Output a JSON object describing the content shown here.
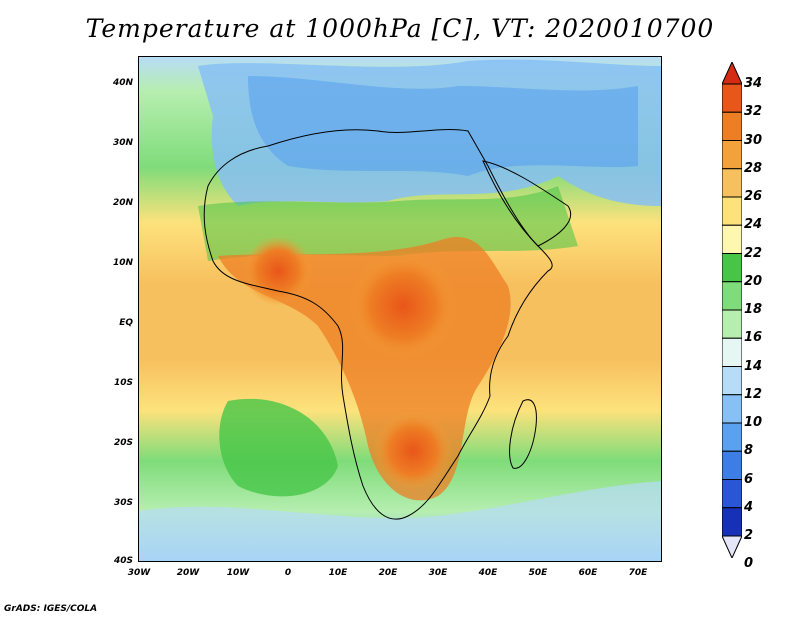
{
  "title": "Temperature at 1000hPa [C], VT: 2020010700",
  "credit": "GrADS: IGES/COLA",
  "map": {
    "lat_labels": [
      "40N",
      "30N",
      "20N",
      "10N",
      "EQ",
      "10S",
      "20S",
      "30S",
      "40S"
    ],
    "lon_labels": [
      "30W",
      "20W",
      "10W",
      "0",
      "10E",
      "20E",
      "30E",
      "40E",
      "50E",
      "60E",
      "70E"
    ],
    "lat_range": [
      -40,
      45
    ],
    "lon_range": [
      -30,
      75
    ]
  },
  "colorbar": {
    "levels": [
      "0",
      "2",
      "4",
      "6",
      "8",
      "10",
      "12",
      "14",
      "16",
      "18",
      "20",
      "22",
      "24",
      "26",
      "28",
      "30",
      "32",
      "34"
    ],
    "colors": [
      "#0c1f6e",
      "#1631b8",
      "#2a55d6",
      "#3c7ee6",
      "#5aa2ef",
      "#87c0f4",
      "#b7dcf8",
      "#e6f7f3",
      "#b6eeb0",
      "#7fdc7a",
      "#46c547",
      "#fdf7b0",
      "#fde27c",
      "#f7c05e",
      "#f3a13a",
      "#ee7e24",
      "#e95619",
      "#d52b12"
    ]
  },
  "icons": {
    "colorbar_low": "triangle-down",
    "colorbar_high": "triangle-up"
  }
}
